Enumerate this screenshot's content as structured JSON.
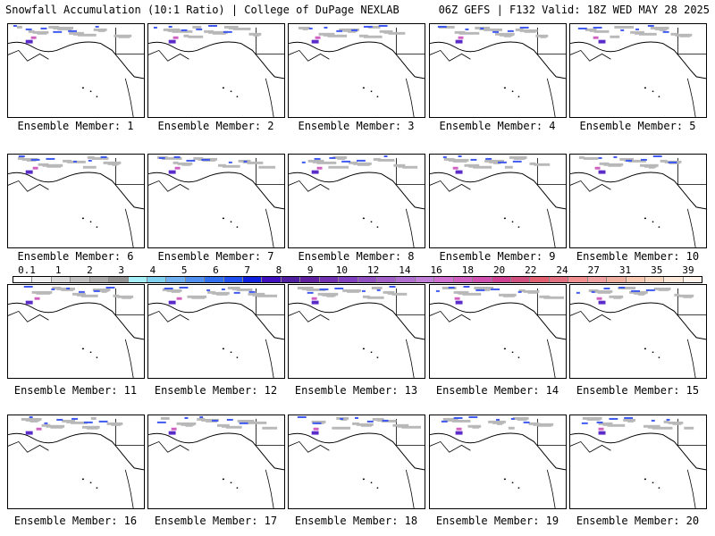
{
  "header": {
    "left": "Snowfall Accumulation (10:1 Ratio) | College of DuPage NEXLAB",
    "right": "06Z GEFS | F132 Valid: 18Z WED MAY 28 2025"
  },
  "panels": [
    {
      "label": "Ensemble Member: 1"
    },
    {
      "label": "Ensemble Member: 2"
    },
    {
      "label": "Ensemble Member: 3"
    },
    {
      "label": "Ensemble Member: 4"
    },
    {
      "label": "Ensemble Member: 5"
    },
    {
      "label": "Ensemble Member: 6"
    },
    {
      "label": "Ensemble Member: 7"
    },
    {
      "label": "Ensemble Member: 8"
    },
    {
      "label": "Ensemble Member: 9"
    },
    {
      "label": "Ensemble Member: 10"
    },
    {
      "label": "Ensemble Member: 11"
    },
    {
      "label": "Ensemble Member: 12"
    },
    {
      "label": "Ensemble Member: 13"
    },
    {
      "label": "Ensemble Member: 14"
    },
    {
      "label": "Ensemble Member: 15"
    },
    {
      "label": "Ensemble Member: 16"
    },
    {
      "label": "Ensemble Member: 17"
    },
    {
      "label": "Ensemble Member: 18"
    },
    {
      "label": "Ensemble Member: 19"
    },
    {
      "label": "Ensemble Member: 20"
    }
  ],
  "colorbar": {
    "labels": [
      "0.1",
      "1",
      "2",
      "3",
      "4",
      "5",
      "6",
      "7",
      "8",
      "9",
      "10",
      "12",
      "14",
      "16",
      "18",
      "20",
      "22",
      "24",
      "27",
      "31",
      "35",
      "39"
    ],
    "colors": [
      "#ffffff",
      "#f0f0f0",
      "#d8d8d8",
      "#c0c0c0",
      "#a8a8a8",
      "#909090",
      "#a8f0f8",
      "#80d0f0",
      "#70b0f0",
      "#5090f0",
      "#3070f0",
      "#2050f0",
      "#1020e0",
      "#4010c0",
      "#5020a0",
      "#6020a0",
      "#7030b0",
      "#8040c0",
      "#9050c0",
      "#a060c8",
      "#b070d0",
      "#c080d8",
      "#d070d0",
      "#d060c0",
      "#d050b0",
      "#d04090",
      "#d05080",
      "#e06070",
      "#e07080",
      "#f09090",
      "#f0a0a0",
      "#f0b0a0",
      "#f8c8b0",
      "#f8d8c0",
      "#fce8d8",
      "#fff4ec"
    ]
  }
}
